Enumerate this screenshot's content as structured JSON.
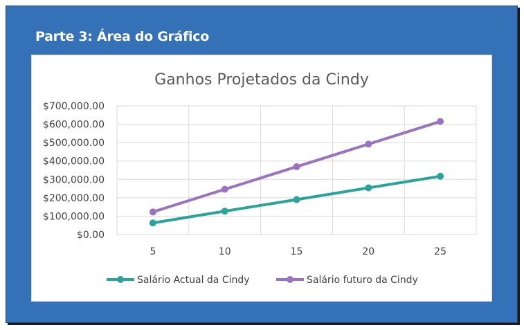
{
  "page": {
    "heading": "Parte 3: Área do Gráfico"
  },
  "chart_data": {
    "type": "line",
    "title": "Ganhos Projetados da Cindy",
    "x": [
      5,
      10,
      15,
      20,
      25
    ],
    "x_tick_labels": [
      "5",
      "10",
      "15",
      "20",
      "25"
    ],
    "y_tick_labels": [
      "$0.00",
      "$100,000.00",
      "$200,000.00",
      "$300,000.00",
      "$400,000.00",
      "$500,000.00",
      "$600,000.00",
      "$700,000.00"
    ],
    "ylim": [
      0,
      700000
    ],
    "y_step": 100000,
    "grid": true,
    "legend_position": "bottom",
    "series": [
      {
        "name": "Salário Actual da Cindy",
        "color": "#2aa39a",
        "values": [
          63000,
          127000,
          190000,
          254000,
          317000
        ]
      },
      {
        "name": "Salário futuro da Cindy",
        "color": "#9b72c1",
        "values": [
          123000,
          246000,
          369000,
          492000,
          615000
        ]
      }
    ]
  }
}
